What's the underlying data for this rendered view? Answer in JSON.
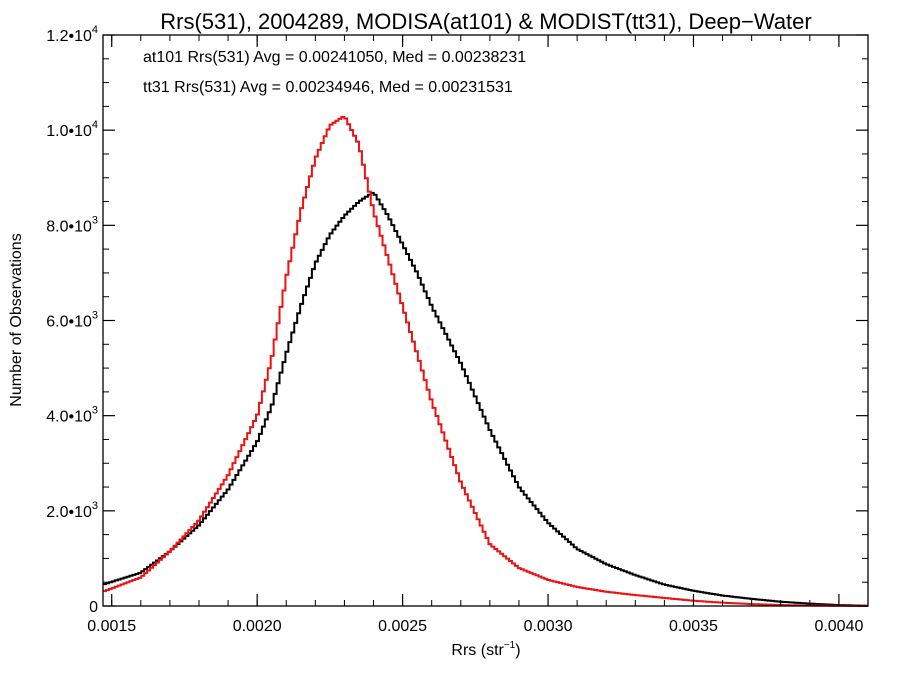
{
  "chart_data": {
    "type": "line",
    "title": "Rrs(531), 2004289, MODISA(at101) & MODIST(tt31), Deep−Water",
    "xlabel": {
      "text": "Rrs (str",
      "sup": "−1",
      "close": ")"
    },
    "ylabel": "Number of Observations",
    "xlim": [
      0.00147,
      0.0041
    ],
    "ylim": [
      0,
      12000
    ],
    "x_ticks": [
      {
        "value": 0.0015,
        "label": "0.0015"
      },
      {
        "value": 0.002,
        "label": "0.0020"
      },
      {
        "value": 0.0025,
        "label": "0.0025"
      },
      {
        "value": 0.003,
        "label": "0.0030"
      },
      {
        "value": 0.0035,
        "label": "0.0035"
      },
      {
        "value": 0.004,
        "label": "0.0040"
      }
    ],
    "y_ticks": [
      {
        "value": 0,
        "base": "0",
        "sup": ""
      },
      {
        "value": 2000,
        "base": "2.0•10",
        "sup": "3"
      },
      {
        "value": 4000,
        "base": "4.0•10",
        "sup": "3"
      },
      {
        "value": 6000,
        "base": "6.0•10",
        "sup": "3"
      },
      {
        "value": 8000,
        "base": "8.0•10",
        "sup": "3"
      },
      {
        "value": 10000,
        "base": "1.0•10",
        "sup": "4"
      },
      {
        "value": 12000,
        "base": "1.2•10",
        "sup": "4"
      }
    ],
    "annotations": [
      {
        "text": "at101 Rrs(531) Avg = 0.00241050, Med = 0.00238231",
        "color": "#000000"
      },
      {
        "text": "tt31 Rrs(531) Avg = 0.00234946, Med = 0.00231531",
        "color": "#ee1111"
      }
    ],
    "series": [
      {
        "color": "#000000",
        "x": [
          0.00147,
          0.0016,
          0.0017,
          0.0018,
          0.0019,
          0.002,
          0.00205,
          0.0021,
          0.00215,
          0.0022,
          0.00225,
          0.0023,
          0.00235,
          0.0024,
          0.00245,
          0.0025,
          0.00255,
          0.0026,
          0.0027,
          0.0028,
          0.0029,
          0.003,
          0.0031,
          0.0032,
          0.0033,
          0.0034,
          0.0035,
          0.0036,
          0.0037,
          0.0038,
          0.0039,
          0.004,
          0.0041
        ],
        "y": [
          450,
          700,
          1150,
          1700,
          2450,
          3450,
          4200,
          5300,
          6300,
          7200,
          7800,
          8200,
          8500,
          8700,
          8200,
          7600,
          7000,
          6300,
          5100,
          3700,
          2500,
          1750,
          1200,
          880,
          650,
          450,
          320,
          220,
          150,
          90,
          50,
          20,
          5
        ]
      },
      {
        "color": "#ee1111",
        "x": [
          0.00147,
          0.0016,
          0.0017,
          0.0018,
          0.0019,
          0.002,
          0.00205,
          0.0021,
          0.00215,
          0.0022,
          0.00225,
          0.0023,
          0.00235,
          0.0024,
          0.00245,
          0.0025,
          0.00255,
          0.0026,
          0.0027,
          0.0028,
          0.0029,
          0.003,
          0.0031,
          0.0032,
          0.0033,
          0.0034,
          0.0035,
          0.0036,
          0.0037,
          0.0038,
          0.0039,
          0.004,
          0.0041
        ],
        "y": [
          300,
          600,
          1150,
          1800,
          2750,
          4000,
          5200,
          6900,
          8300,
          9400,
          10100,
          10300,
          9700,
          8300,
          7300,
          6300,
          5300,
          4300,
          2600,
          1300,
          800,
          550,
          400,
          300,
          230,
          170,
          110,
          70,
          40,
          20,
          10,
          5,
          0
        ]
      }
    ]
  }
}
